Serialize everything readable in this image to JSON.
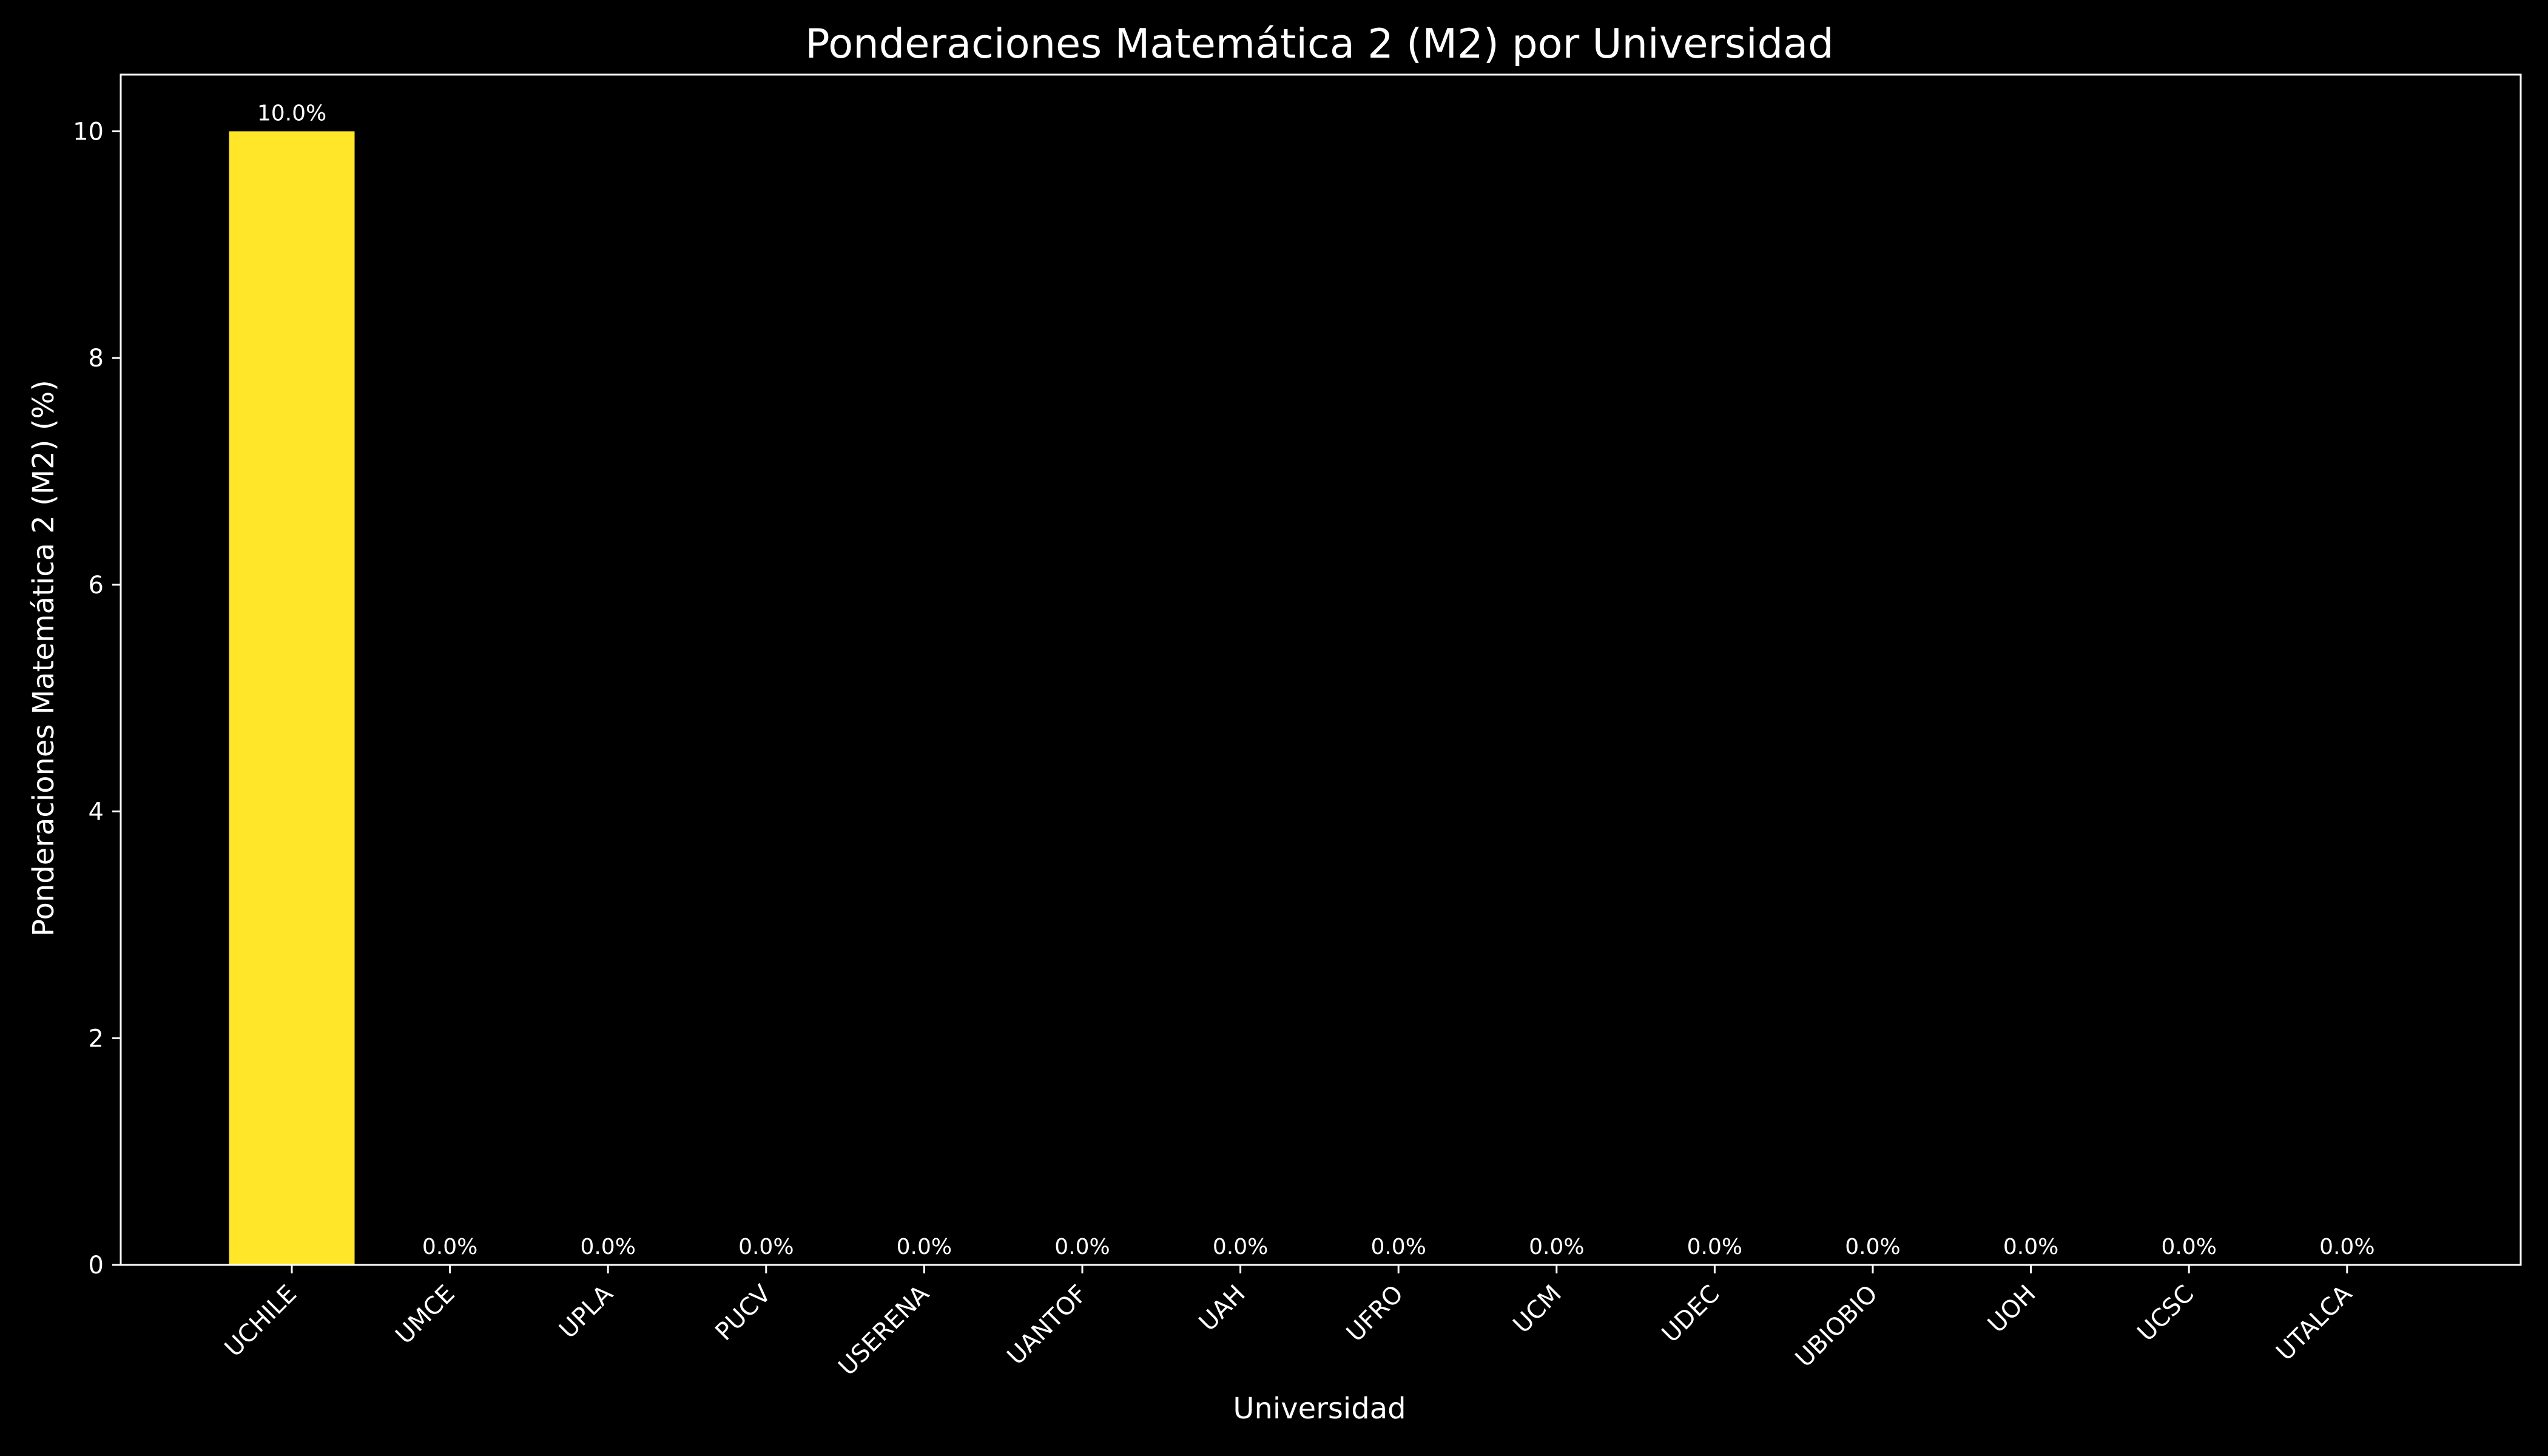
{
  "chart_data": {
    "type": "bar",
    "title": "Ponderaciones Matemática 2 (M2) por Universidad",
    "xlabel": "Universidad",
    "ylabel": "Ponderaciones Matemática 2 (M2) (%)",
    "categories": [
      "UCHILE",
      "UMCE",
      "UPLA",
      "PUCV",
      "USERENA",
      "UANTOF",
      "UAH",
      "UFRO",
      "UCM",
      "UDEC",
      "UBIOBIO",
      "UOH",
      "UCSC",
      "UTALCA"
    ],
    "values": [
      10.0,
      0.0,
      0.0,
      0.0,
      0.0,
      0.0,
      0.0,
      0.0,
      0.0,
      0.0,
      0.0,
      0.0,
      0.0,
      0.0
    ],
    "bar_labels": [
      "10.0%",
      "0.0%",
      "0.0%",
      "0.0%",
      "0.0%",
      "0.0%",
      "0.0%",
      "0.0%",
      "0.0%",
      "0.0%",
      "0.0%",
      "0.0%",
      "0.0%",
      "0.0%"
    ],
    "ylim": [
      0,
      10.5
    ],
    "yticks": [
      0,
      2,
      4,
      6,
      8,
      10
    ],
    "grid": false,
    "legend": "none",
    "bar_color": "#FFE629",
    "background_color": "#000000",
    "text_color": "#ffffff"
  }
}
